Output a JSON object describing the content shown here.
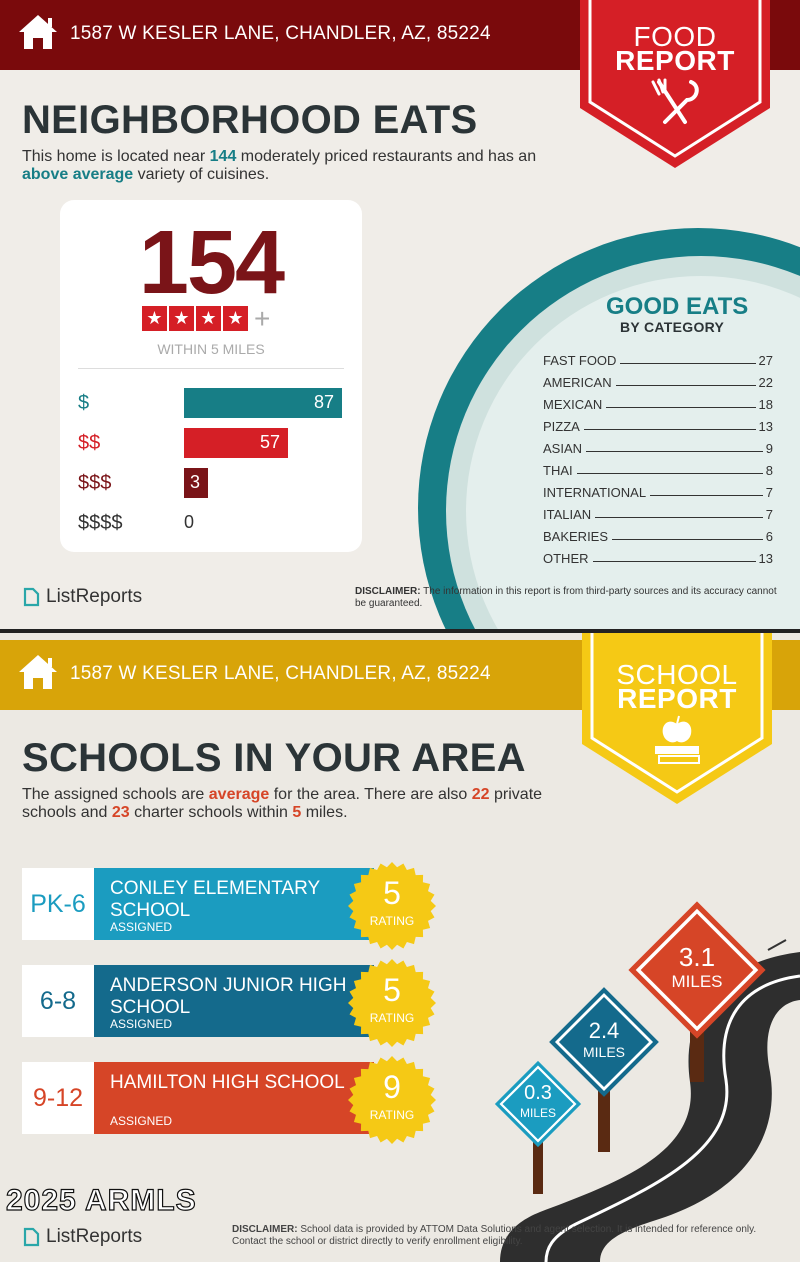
{
  "food": {
    "address": "1587 W KESLER LANE, CHANDLER, AZ, 85224",
    "badge_line1": "FOOD",
    "badge_line2": "REPORT",
    "title": "NEIGHBORHOOD EATS",
    "intro_pre": "This home is located near ",
    "intro_count": "144",
    "intro_mid": " moderately priced restaurants and has an ",
    "intro_variety": "above average",
    "intro_post": " variety of cuisines.",
    "big_number": "154",
    "stars": 4,
    "plus": "+",
    "within": "WITHIN 5 MILES",
    "price_rows": [
      {
        "label": "$",
        "value": 87,
        "color": "#177e86",
        "label_color": "#177e86"
      },
      {
        "label": "$$",
        "value": 57,
        "color": "#d51f26",
        "label_color": "#d51f26"
      },
      {
        "label": "$$$",
        "value": 3,
        "color": "#7a1418",
        "label_color": "#7a1418"
      },
      {
        "label": "$$$$",
        "value": 0,
        "color": "#333333",
        "label_color": "#333333"
      }
    ],
    "good_eats_title": "GOOD EATS",
    "good_eats_sub": "BY CATEGORY",
    "categories": [
      {
        "name": "FAST FOOD",
        "count": "27"
      },
      {
        "name": "AMERICAN",
        "count": "22"
      },
      {
        "name": "MEXICAN",
        "count": "18"
      },
      {
        "name": "PIZZA",
        "count": "13"
      },
      {
        "name": "ASIAN",
        "count": "9"
      },
      {
        "name": "THAI",
        "count": "8"
      },
      {
        "name": "INTERNATIONAL",
        "count": "7"
      },
      {
        "name": "ITALIAN",
        "count": "7"
      },
      {
        "name": "BAKERIES",
        "count": "6"
      },
      {
        "name": "OTHER",
        "count": "13"
      }
    ],
    "logo": "ListReports",
    "disclaimer_label": "DISCLAIMER:",
    "disclaimer": " The information in this report is from third-party sources and its accuracy cannot be guaranteed."
  },
  "school": {
    "address": "1587 W KESLER LANE, CHANDLER, AZ, 85224",
    "badge_line1": "SCHOOL",
    "badge_line2": "REPORT",
    "title": "SCHOOLS IN YOUR AREA",
    "intro_pre": "The assigned schools are ",
    "intro_quality": "average",
    "intro_mid1": " for the area. There are also ",
    "intro_private": "22",
    "intro_mid2": " private schools and ",
    "intro_charter": "23",
    "intro_mid3": " charter schools within ",
    "intro_miles": "5",
    "intro_post": " miles.",
    "schools": [
      {
        "grade": "PK-6",
        "name": "CONLEY ELEMENTARY SCHOOL",
        "assigned": "ASSIGNED",
        "rating": "5",
        "rating_label": "RATING",
        "color": "#1b9cc0",
        "grade_color": "#1b9cc0"
      },
      {
        "grade": "6-8",
        "name": "ANDERSON JUNIOR HIGH SCHOOL",
        "assigned": "ASSIGNED",
        "rating": "5",
        "rating_label": "RATING",
        "color": "#146a8c",
        "grade_color": "#146a8c"
      },
      {
        "grade": "9-12",
        "name": "HAMILTON HIGH SCHOOL",
        "assigned": "ASSIGNED",
        "rating": "9",
        "rating_label": "RATING",
        "color": "#d64527",
        "grade_color": "#d64527"
      }
    ],
    "signs": [
      {
        "value": "0.3",
        "unit": "MILES"
      },
      {
        "value": "2.4",
        "unit": "MILES"
      },
      {
        "value": "3.1",
        "unit": "MILES"
      }
    ],
    "watermark": "2025 ARMLS",
    "logo": "ListReports",
    "disclaimer_label": "DISCLAIMER:",
    "disclaimer": " School data is provided by ATTOM Data Solutions and agent selection. It is intended for reference only. Contact the school or district directly to verify enrollment eligibility."
  },
  "colors": {
    "food_bar": "#7a0a0c",
    "food_badge": "#d51f26",
    "school_bar": "#d8a409",
    "school_badge": "#f5c915",
    "teal": "#177e86",
    "orange": "#d64527"
  }
}
